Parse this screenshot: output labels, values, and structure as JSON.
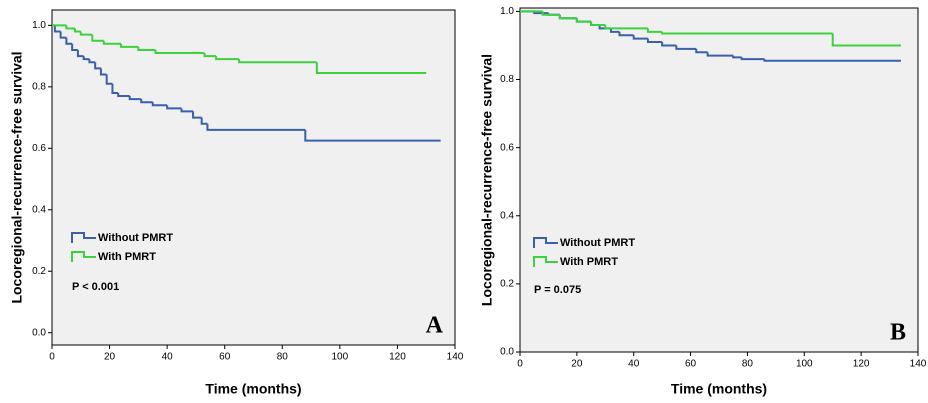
{
  "chart_data": [
    {
      "type": "step",
      "panel_label": "A",
      "annotation": "P < 0.001",
      "x_label": "Time (months)",
      "y_label": "Locoregional-recurrence-free survival",
      "xlim": [
        0,
        140
      ],
      "ylim": [
        -0.04,
        1.05
      ],
      "xticks": [
        0,
        20,
        40,
        60,
        80,
        100,
        120,
        140
      ],
      "yticks": [
        {
          "value": 0,
          "label": "0.0"
        },
        {
          "value": 0.2,
          "label": "0.2"
        },
        {
          "value": 0.4,
          "label": "0.4"
        },
        {
          "value": 0.6,
          "label": "0.6"
        },
        {
          "value": 0.8,
          "label": "0.8"
        },
        {
          "value": 1,
          "label": "1.0"
        }
      ],
      "series": [
        {
          "name": "Without PMRT",
          "color": "#3a5fad",
          "x": [
            0,
            1,
            3,
            5,
            7,
            9,
            11,
            13,
            15,
            17,
            19,
            21,
            23,
            27,
            31,
            35,
            40,
            45,
            49,
            52,
            54,
            88,
            135
          ],
          "values": [
            1.0,
            0.98,
            0.96,
            0.94,
            0.92,
            0.9,
            0.89,
            0.88,
            0.86,
            0.84,
            0.81,
            0.78,
            0.77,
            0.76,
            0.75,
            0.74,
            0.73,
            0.72,
            0.7,
            0.68,
            0.66,
            0.625,
            0.625
          ]
        },
        {
          "name": "With PMRT",
          "color": "#3cd23c",
          "x": [
            0,
            5,
            8,
            10,
            14,
            18,
            24,
            30,
            36,
            53,
            57,
            65,
            92,
            130
          ],
          "values": [
            1.0,
            0.99,
            0.98,
            0.97,
            0.95,
            0.94,
            0.93,
            0.92,
            0.91,
            0.9,
            0.89,
            0.88,
            0.845,
            0.845
          ]
        }
      ]
    },
    {
      "type": "step",
      "panel_label": "B",
      "annotation": "P = 0.075",
      "x_label": "Time (months)",
      "y_label": "Locoregional-recurrence-free survival",
      "xlim": [
        0,
        140
      ],
      "ylim": [
        0,
        1.01
      ],
      "xticks": [
        0,
        20,
        40,
        60,
        80,
        100,
        120,
        140
      ],
      "yticks": [
        {
          "value": 0,
          "label": "0.0"
        },
        {
          "value": 0.2,
          "label": "0.2"
        },
        {
          "value": 0.4,
          "label": "0.4"
        },
        {
          "value": 0.6,
          "label": "0.6"
        },
        {
          "value": 0.8,
          "label": "0.8"
        },
        {
          "value": 1,
          "label": "1.0"
        }
      ],
      "series": [
        {
          "name": "Without PMRT",
          "color": "#3a5fad",
          "x": [
            0,
            5,
            10,
            14,
            20,
            25,
            28,
            32,
            35,
            40,
            45,
            50,
            55,
            62,
            66,
            75,
            78,
            86,
            134
          ],
          "values": [
            1.0,
            0.995,
            0.99,
            0.98,
            0.97,
            0.96,
            0.95,
            0.94,
            0.93,
            0.92,
            0.91,
            0.9,
            0.89,
            0.88,
            0.87,
            0.865,
            0.86,
            0.855,
            0.855
          ]
        },
        {
          "name": "With PMRT",
          "color": "#3cd23c",
          "x": [
            0,
            8,
            14,
            20,
            25,
            30,
            45,
            50,
            110,
            134
          ],
          "values": [
            1.0,
            0.99,
            0.98,
            0.97,
            0.96,
            0.95,
            0.94,
            0.935,
            0.9,
            0.9
          ]
        }
      ]
    }
  ]
}
